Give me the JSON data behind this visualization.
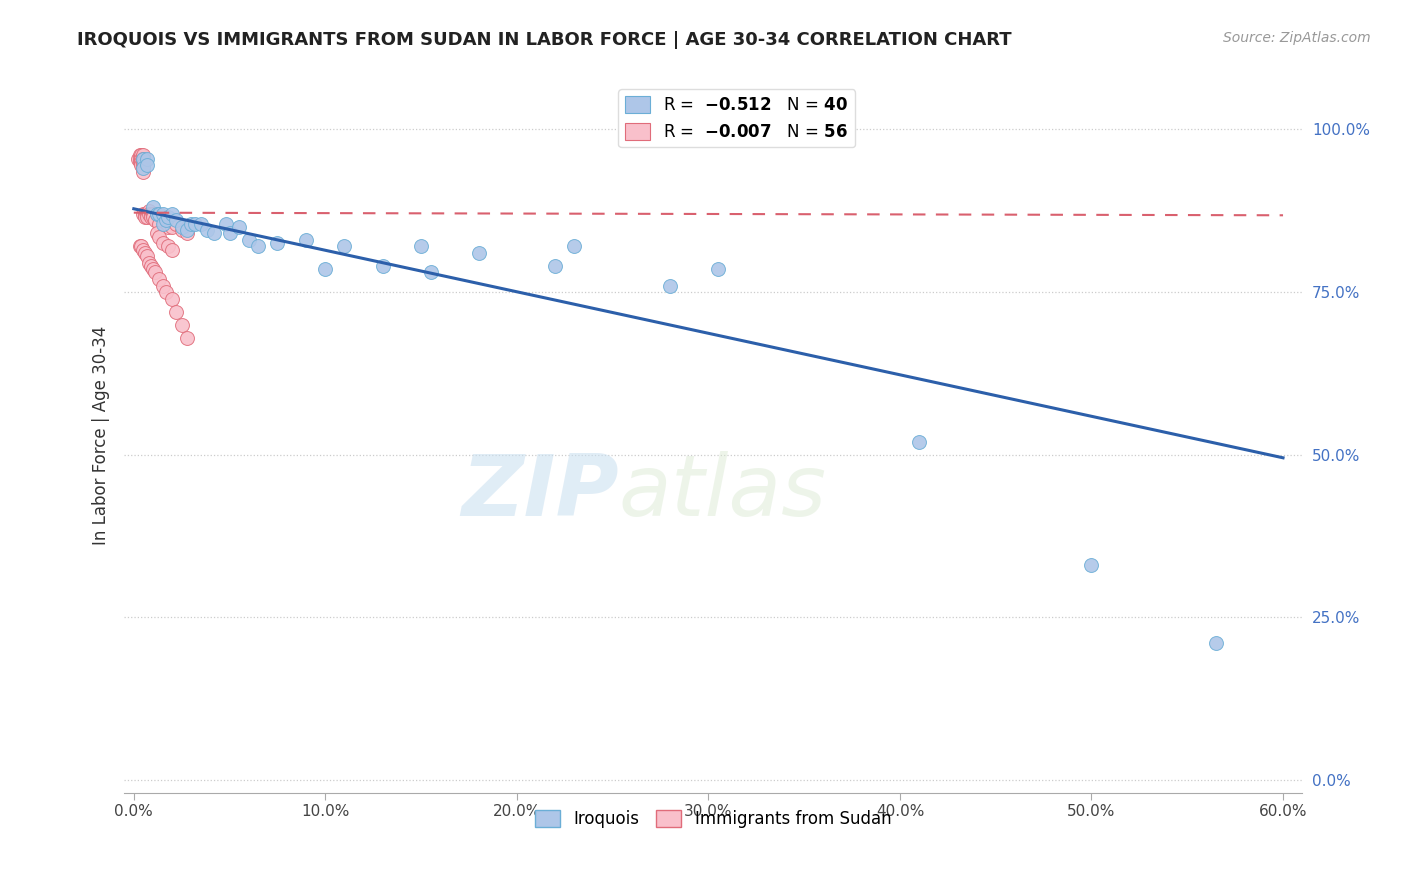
{
  "title": "IROQUOIS VS IMMIGRANTS FROM SUDAN IN LABOR FORCE | AGE 30-34 CORRELATION CHART",
  "source": "Source: ZipAtlas.com",
  "ylabel": "In Labor Force | Age 30-34",
  "xlabel_ticks": [
    "0.0%",
    "10.0%",
    "20.0%",
    "30.0%",
    "40.0%",
    "50.0%",
    "60.0%"
  ],
  "xlabel_vals": [
    0.0,
    0.1,
    0.2,
    0.3,
    0.4,
    0.5,
    0.6
  ],
  "ylabel_ticks": [
    "0.0%",
    "25.0%",
    "50.0%",
    "75.0%",
    "100.0%"
  ],
  "ylabel_vals": [
    0.0,
    0.25,
    0.5,
    0.75,
    1.0
  ],
  "xlim": [
    -0.005,
    0.61
  ],
  "ylim": [
    -0.02,
    1.08
  ],
  "iroquois_color": "#aec6e8",
  "iroquois_edge": "#6baed6",
  "sudan_color": "#f9c0cb",
  "sudan_edge": "#e06c7a",
  "trend_blue": "#2c5faa",
  "trend_pink": "#d9606e",
  "watermark_zip": "ZIP",
  "watermark_atlas": "atlas",
  "iroquois_x": [
    0.005,
    0.005,
    0.007,
    0.007,
    0.01,
    0.012,
    0.013,
    0.015,
    0.015,
    0.017,
    0.018,
    0.02,
    0.022,
    0.025,
    0.028,
    0.03,
    0.032,
    0.035,
    0.038,
    0.042,
    0.048,
    0.05,
    0.055,
    0.06,
    0.065,
    0.075,
    0.09,
    0.1,
    0.11,
    0.13,
    0.15,
    0.155,
    0.18,
    0.22,
    0.23,
    0.28,
    0.305,
    0.41,
    0.5,
    0.565
  ],
  "iroquois_y": [
    0.955,
    0.94,
    0.955,
    0.945,
    0.88,
    0.87,
    0.87,
    0.87,
    0.855,
    0.86,
    0.865,
    0.87,
    0.86,
    0.85,
    0.845,
    0.855,
    0.855,
    0.855,
    0.845,
    0.84,
    0.855,
    0.84,
    0.85,
    0.83,
    0.82,
    0.825,
    0.83,
    0.785,
    0.82,
    0.79,
    0.82,
    0.78,
    0.81,
    0.79,
    0.82,
    0.76,
    0.785,
    0.52,
    0.33,
    0.21
  ],
  "sudan_x": [
    0.002,
    0.003,
    0.003,
    0.003,
    0.004,
    0.004,
    0.004,
    0.004,
    0.005,
    0.005,
    0.005,
    0.005,
    0.005,
    0.005,
    0.005,
    0.006,
    0.006,
    0.007,
    0.007,
    0.008,
    0.008,
    0.009,
    0.009,
    0.01,
    0.01,
    0.011,
    0.012,
    0.013,
    0.015,
    0.016,
    0.018,
    0.02,
    0.022,
    0.025,
    0.028,
    0.012,
    0.013,
    0.015,
    0.018,
    0.02,
    0.003,
    0.004,
    0.005,
    0.006,
    0.007,
    0.008,
    0.009,
    0.01,
    0.011,
    0.013,
    0.015,
    0.017,
    0.02,
    0.022,
    0.025,
    0.028
  ],
  "sudan_y": [
    0.955,
    0.96,
    0.955,
    0.95,
    0.96,
    0.955,
    0.95,
    0.945,
    0.96,
    0.955,
    0.95,
    0.945,
    0.94,
    0.935,
    0.87,
    0.87,
    0.865,
    0.87,
    0.865,
    0.875,
    0.87,
    0.87,
    0.865,
    0.87,
    0.865,
    0.86,
    0.87,
    0.855,
    0.865,
    0.855,
    0.85,
    0.85,
    0.855,
    0.845,
    0.84,
    0.84,
    0.835,
    0.825,
    0.82,
    0.815,
    0.82,
    0.82,
    0.815,
    0.81,
    0.805,
    0.795,
    0.79,
    0.785,
    0.78,
    0.77,
    0.76,
    0.75,
    0.74,
    0.72,
    0.7,
    0.68
  ],
  "trend_irq_x0": 0.0,
  "trend_irq_y0": 0.878,
  "trend_irq_x1": 0.6,
  "trend_irq_y1": 0.495,
  "trend_sud_x0": 0.0,
  "trend_sud_y0": 0.872,
  "trend_sud_x1": 0.6,
  "trend_sud_y1": 0.868
}
